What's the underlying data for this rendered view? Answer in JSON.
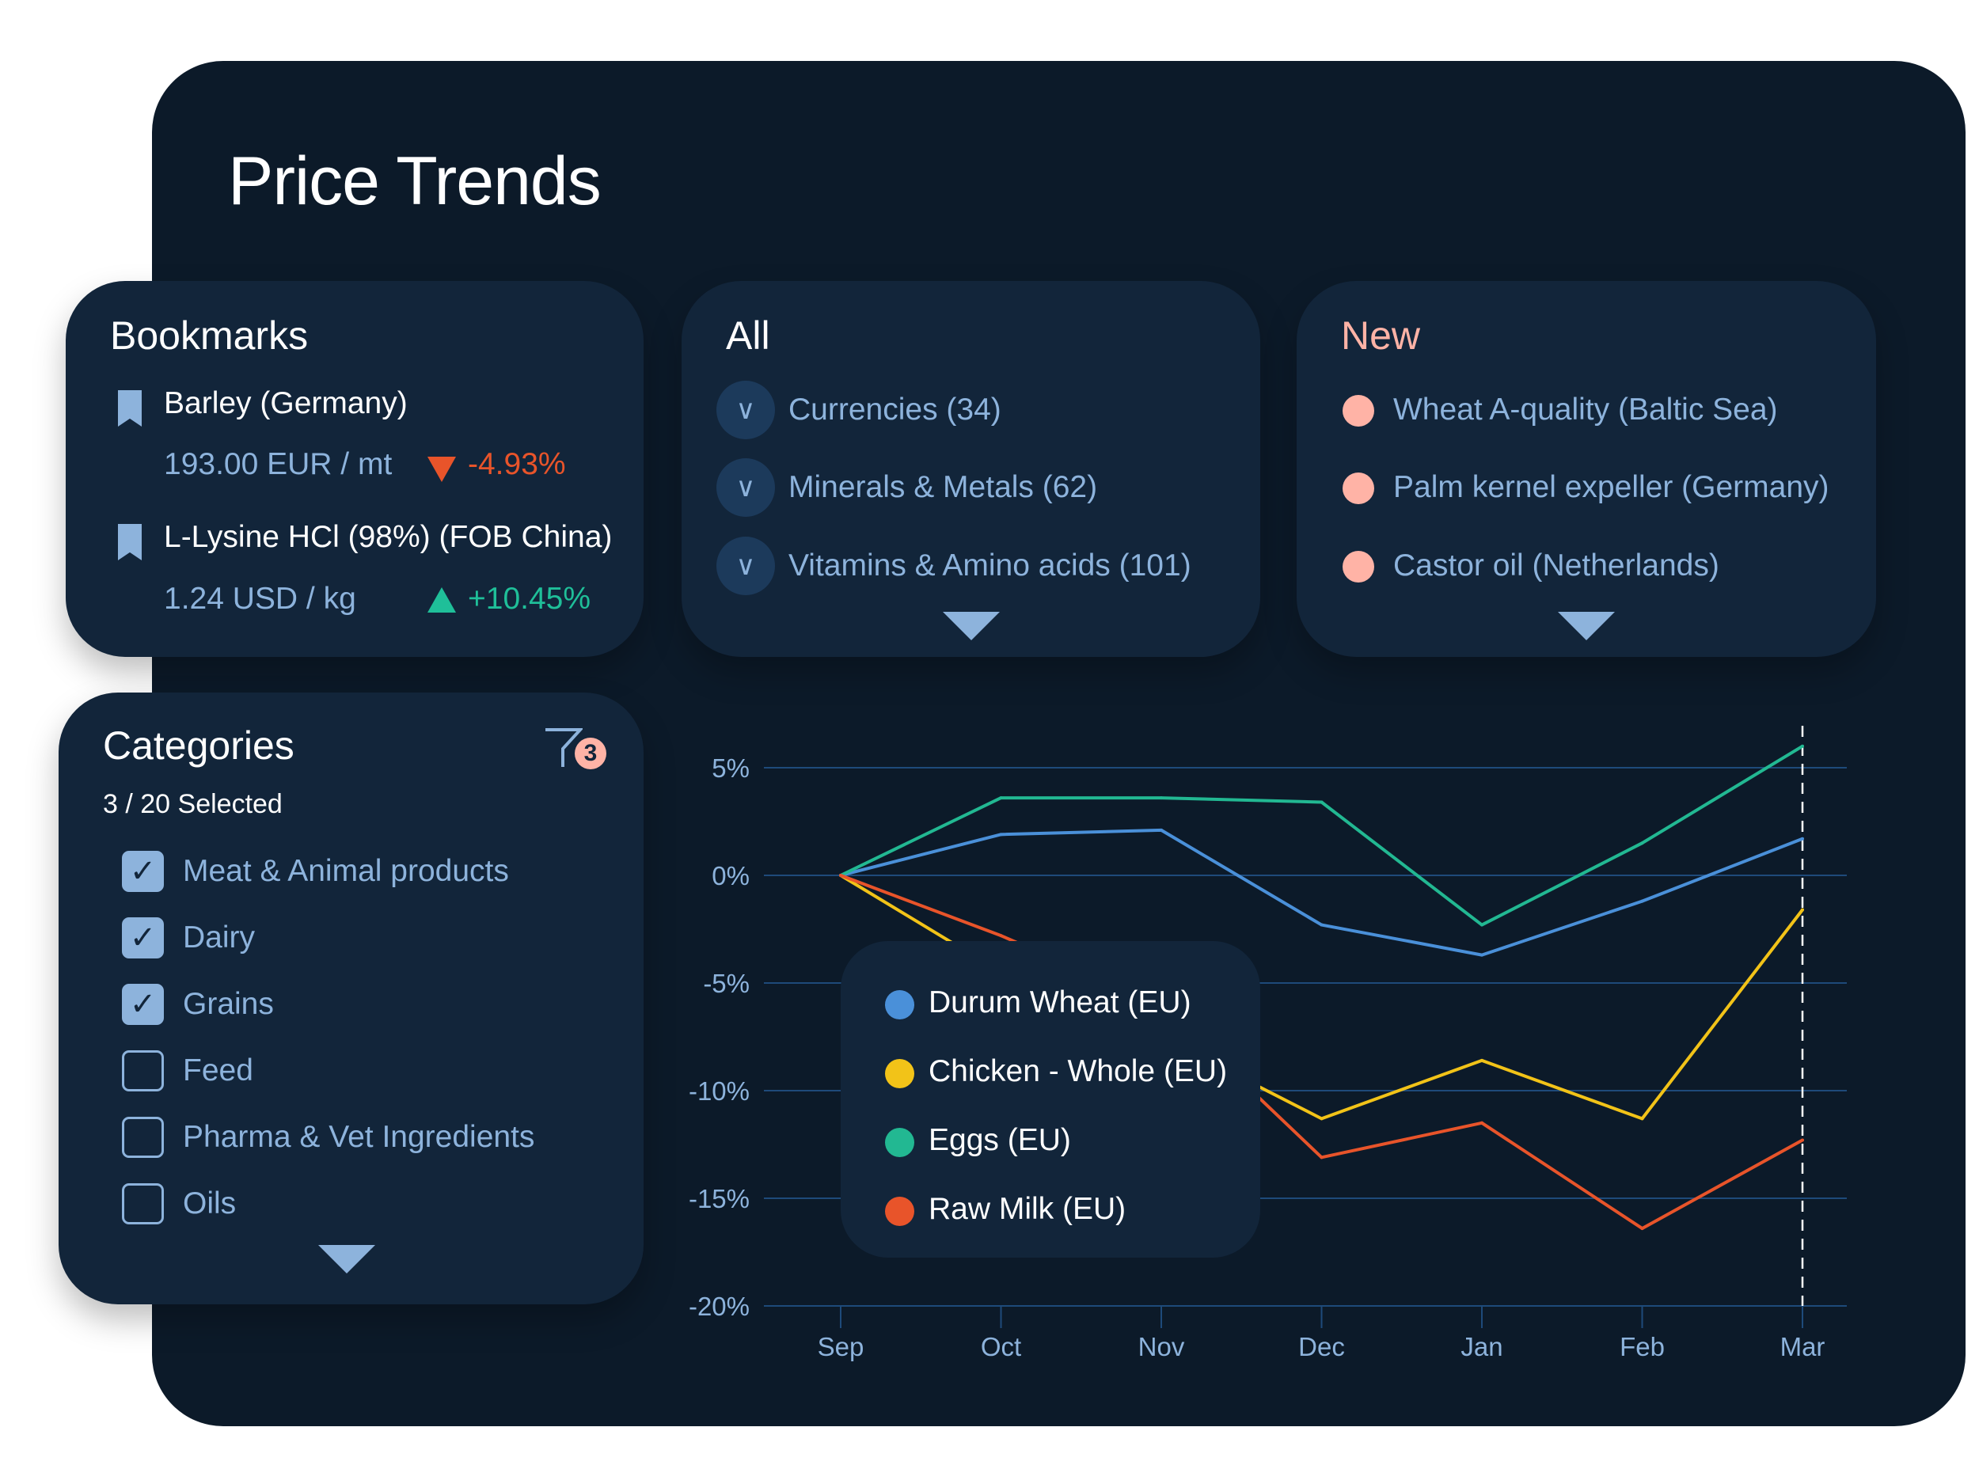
{
  "title": "Price Trends",
  "bookmarks": {
    "title": "Bookmarks",
    "items": [
      {
        "name": "Barley (Germany)",
        "price": "193.00 EUR / mt",
        "change": "-4.93%",
        "direction": "down"
      },
      {
        "name": "L-Lysine HCl (98%) (FOB China)",
        "price": "1.24 USD / kg",
        "change": "+10.45%",
        "direction": "up"
      }
    ]
  },
  "all": {
    "title": "All",
    "items": [
      "Currencies (34)",
      "Minerals & Metals (62)",
      "Vitamins & Amino acids (101)"
    ]
  },
  "new": {
    "title": "New",
    "items": [
      "Wheat A-quality (Baltic Sea)",
      "Palm kernel expeller (Germany)",
      "Castor oil (Netherlands)"
    ]
  },
  "categories": {
    "title": "Categories",
    "selected_text": "3 / 20 Selected",
    "filter_count": "3",
    "items": [
      {
        "label": "Meat & Animal products",
        "checked": true
      },
      {
        "label": "Dairy",
        "checked": true
      },
      {
        "label": "Grains",
        "checked": true
      },
      {
        "label": "Feed",
        "checked": false
      },
      {
        "label": "Pharma & Vet Ingredients",
        "checked": false
      },
      {
        "label": "Oils",
        "checked": false
      }
    ]
  },
  "colors": {
    "up": "#1fbf99",
    "down": "#e8542a",
    "new": "#ffb3a6",
    "accent": "#8db3dc"
  },
  "chart_data": {
    "type": "line",
    "categories": [
      "Sep",
      "Oct",
      "Nov",
      "Dec",
      "Jan",
      "Feb",
      "Mar"
    ],
    "ylim": [
      -20,
      5
    ],
    "yticks": [
      "5%",
      "0%",
      "-5%",
      "-10%",
      "-15%",
      "-20%"
    ],
    "ytick_values": [
      5,
      0,
      -5,
      -10,
      -15,
      -20
    ],
    "grid": true,
    "legend_placement": "inside-left",
    "highlight_category": "Mar",
    "series": [
      {
        "name": "Durum Wheat (EU)",
        "color": "#4a90d9",
        "values": [
          0,
          1.9,
          2.1,
          -2.3,
          -3.7,
          -1.2,
          1.7
        ]
      },
      {
        "name": "Chicken - Whole (EU)",
        "color": "#f2c318",
        "values": [
          0,
          -4.5,
          -7.5,
          -11.3,
          -8.6,
          -11.3,
          -1.6
        ]
      },
      {
        "name": "Eggs (EU)",
        "color": "#22b892",
        "values": [
          0,
          3.6,
          3.6,
          3.4,
          -2.3,
          1.5,
          6.0
        ]
      },
      {
        "name": "Raw Milk (EU)",
        "color": "#e8542a",
        "values": [
          0,
          -2.8,
          -6.0,
          -13.1,
          -11.5,
          -16.4,
          -12.3
        ]
      }
    ]
  }
}
